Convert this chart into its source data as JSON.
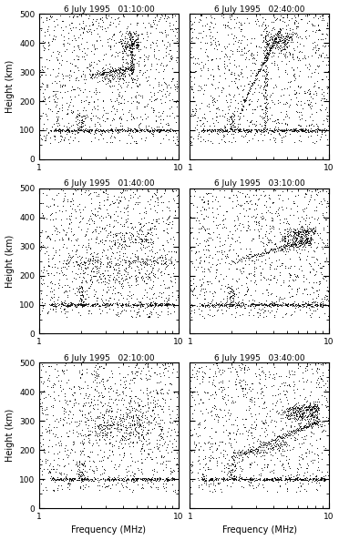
{
  "titles": [
    "6 July 1995   01:10:00",
    "6 July 1995   02:40:00",
    "6 July 1995   01:40:00",
    "6 July 1995   03:10:00",
    "6 July 1995   02:10:00",
    "6 July 1995   03:40:00"
  ],
  "xlabel": "Frequency (MHz)",
  "ylabel": "Height (km)",
  "xlim": [
    1,
    10
  ],
  "ylim": [
    0,
    500
  ],
  "yticks": [
    0,
    100,
    200,
    300,
    400,
    500
  ],
  "background_color": "#ffffff",
  "dot_color": "#000000",
  "figsize": [
    3.72,
    5.93
  ],
  "dpi": 100
}
